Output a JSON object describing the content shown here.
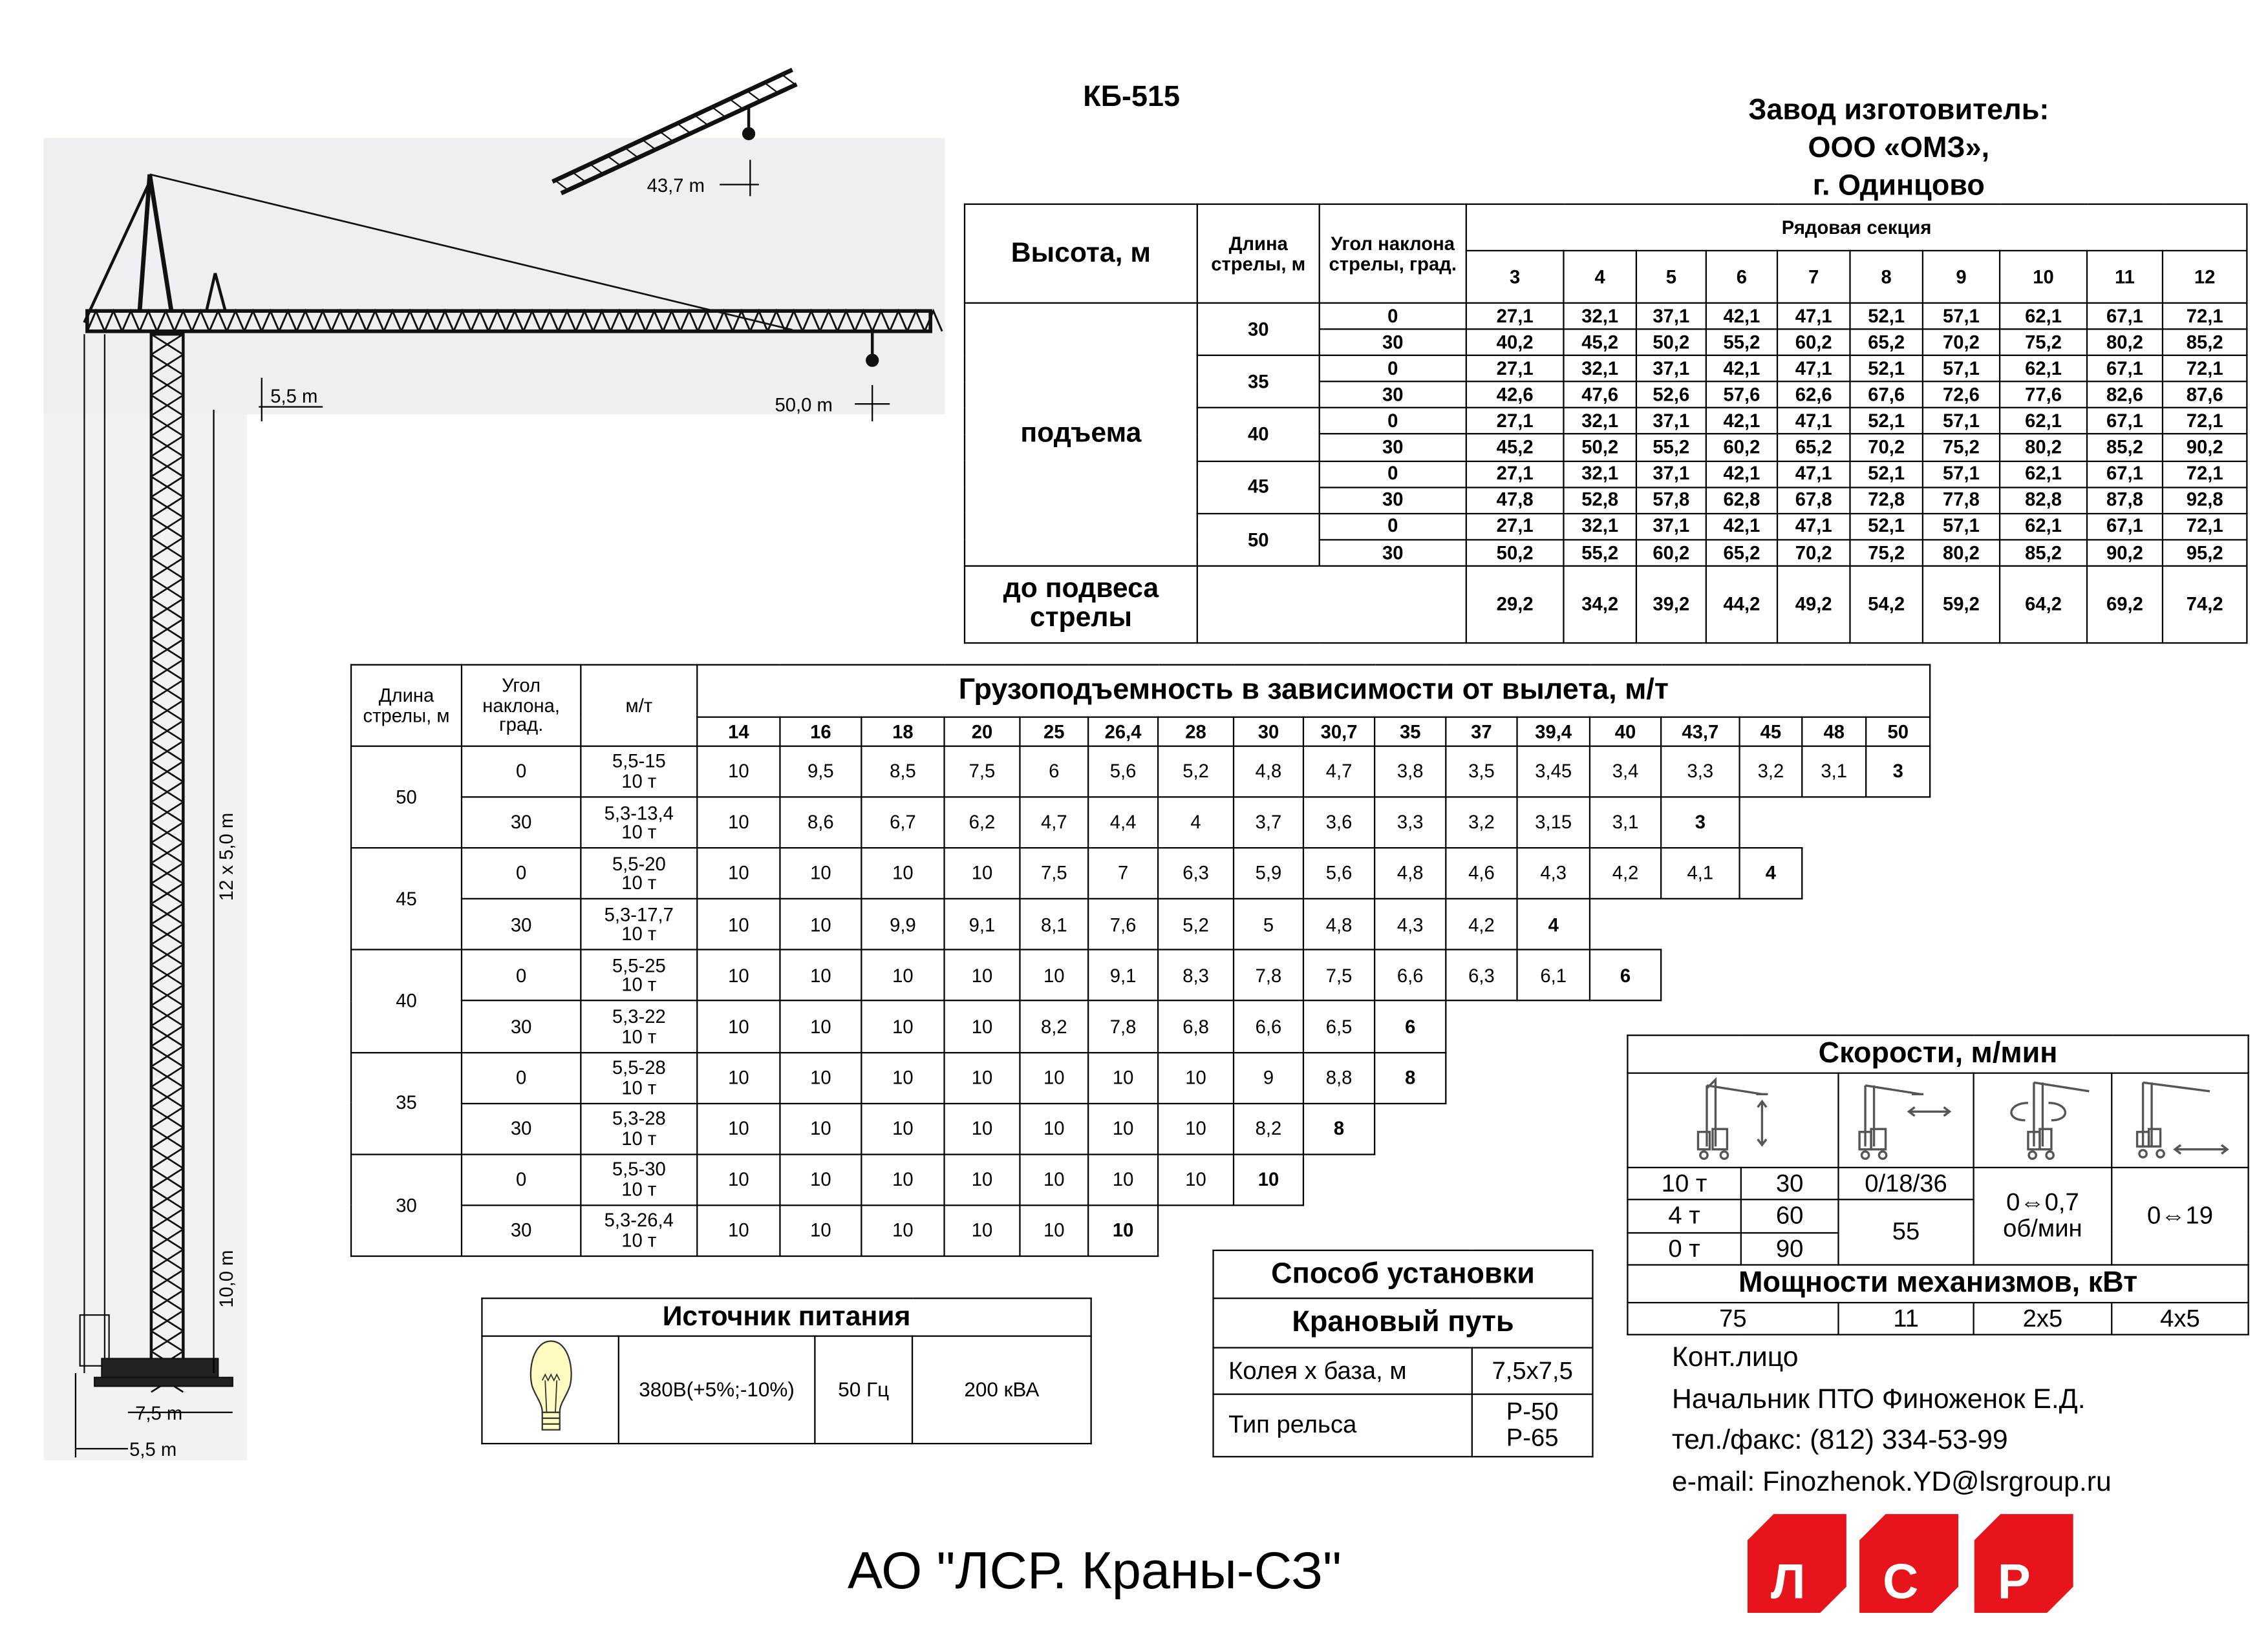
{
  "title": "КБ-515",
  "manufacturer": {
    "line1": "Завод изготовитель:",
    "line2": "ООО «ОМЗ»,",
    "line3": "г. Одинцово"
  },
  "drawing": {
    "labels": {
      "luffing_reach": "43,7 m",
      "jib_reach": "50,0 m",
      "jib_height": "5,5 m",
      "tower_sections": "12 x 5,0 m",
      "base_height": "10,0 m",
      "track_gauge": "7,5 m",
      "base_offset": "5,5 m"
    }
  },
  "height_table": {
    "height_label": "Высота, м",
    "boom_label": "Длина стрелы, м",
    "angle_label": "Угол наклона стрелы, град.",
    "section_label": "Рядовая секция",
    "sections": [
      "3",
      "4",
      "5",
      "6",
      "7",
      "8",
      "9",
      "10",
      "11",
      "12"
    ],
    "lift_label": "подъема",
    "groups": [
      {
        "boom": "30",
        "rows": [
          {
            "angle": "0",
            "values": [
              "27,1",
              "32,1",
              "37,1",
              "42,1",
              "47,1",
              "52,1",
              "57,1",
              "62,1",
              "67,1",
              "72,1"
            ]
          },
          {
            "angle": "30",
            "values": [
              "40,2",
              "45,2",
              "50,2",
              "55,2",
              "60,2",
              "65,2",
              "70,2",
              "75,2",
              "80,2",
              "85,2"
            ]
          }
        ]
      },
      {
        "boom": "35",
        "rows": [
          {
            "angle": "0",
            "values": [
              "27,1",
              "32,1",
              "37,1",
              "42,1",
              "47,1",
              "52,1",
              "57,1",
              "62,1",
              "67,1",
              "72,1"
            ]
          },
          {
            "angle": "30",
            "values": [
              "42,6",
              "47,6",
              "52,6",
              "57,6",
              "62,6",
              "67,6",
              "72,6",
              "77,6",
              "82,6",
              "87,6"
            ]
          }
        ]
      },
      {
        "boom": "40",
        "rows": [
          {
            "angle": "0",
            "values": [
              "27,1",
              "32,1",
              "37,1",
              "42,1",
              "47,1",
              "52,1",
              "57,1",
              "62,1",
              "67,1",
              "72,1"
            ]
          },
          {
            "angle": "30",
            "values": [
              "45,2",
              "50,2",
              "55,2",
              "60,2",
              "65,2",
              "70,2",
              "75,2",
              "80,2",
              "85,2",
              "90,2"
            ]
          }
        ]
      },
      {
        "boom": "45",
        "rows": [
          {
            "angle": "0",
            "values": [
              "27,1",
              "32,1",
              "37,1",
              "42,1",
              "47,1",
              "52,1",
              "57,1",
              "62,1",
              "67,1",
              "72,1"
            ]
          },
          {
            "angle": "30",
            "values": [
              "47,8",
              "52,8",
              "57,8",
              "62,8",
              "67,8",
              "72,8",
              "77,8",
              "82,8",
              "87,8",
              "92,8"
            ]
          }
        ]
      },
      {
        "boom": "50",
        "rows": [
          {
            "angle": "0",
            "values": [
              "27,1",
              "32,1",
              "37,1",
              "42,1",
              "47,1",
              "52,1",
              "57,1",
              "62,1",
              "67,1",
              "72,1"
            ]
          },
          {
            "angle": "30",
            "values": [
              "50,2",
              "55,2",
              "60,2",
              "65,2",
              "70,2",
              "75,2",
              "80,2",
              "85,2",
              "90,2",
              "95,2"
            ]
          }
        ]
      }
    ],
    "jib_hinge_label": "до подвеса стрелы",
    "jib_hinge_values": [
      "29,2",
      "34,2",
      "39,2",
      "44,2",
      "49,2",
      "54,2",
      "59,2",
      "64,2",
      "69,2",
      "74,2"
    ]
  },
  "capacity_table": {
    "title": "Грузоподъемность в зависимости от вылета, м/т",
    "boom_label": "Длина стрелы, м",
    "angle_label": "Угол наклона, град.",
    "mt_label": "м/т",
    "radii": [
      "14",
      "16",
      "18",
      "20",
      "25",
      "26,4",
      "28",
      "30",
      "30,7",
      "35",
      "37",
      "39,4",
      "40",
      "43,7",
      "45",
      "48",
      "50"
    ],
    "groups": [
      {
        "boom": "50",
        "rows": [
          {
            "angle": "0",
            "range": "5,5-15",
            "load": "10 т",
            "values": [
              "10",
              "9,5",
              "8,5",
              "7,5",
              "6",
              "5,6",
              "5,2",
              "4,8",
              "4,7",
              "3,8",
              "3,5",
              "3,45",
              "3,4",
              "3,3",
              "3,2",
              "3,1",
              "3"
            ]
          },
          {
            "angle": "30",
            "range": "5,3-13,4",
            "load": "10 т",
            "values": [
              "10",
              "8,6",
              "6,7",
              "6,2",
              "4,7",
              "4,4",
              "4",
              "3,7",
              "3,6",
              "3,3",
              "3,2",
              "3,15",
              "3,1",
              "3"
            ]
          }
        ]
      },
      {
        "boom": "45",
        "rows": [
          {
            "angle": "0",
            "range": "5,5-20",
            "load": "10 т",
            "values": [
              "10",
              "10",
              "10",
              "10",
              "7,5",
              "7",
              "6,3",
              "5,9",
              "5,6",
              "4,8",
              "4,6",
              "4,3",
              "4,2",
              "4,1",
              "4"
            ]
          },
          {
            "angle": "30",
            "range": "5,3-17,7",
            "load": "10 т",
            "values": [
              "10",
              "10",
              "9,9",
              "9,1",
              "8,1",
              "7,6",
              "5,2",
              "5",
              "4,8",
              "4,3",
              "4,2",
              "4"
            ]
          }
        ]
      },
      {
        "boom": "40",
        "rows": [
          {
            "angle": "0",
            "range": "5,5-25",
            "load": "10 т",
            "values": [
              "10",
              "10",
              "10",
              "10",
              "10",
              "9,1",
              "8,3",
              "7,8",
              "7,5",
              "6,6",
              "6,3",
              "6,1",
              "6"
            ]
          },
          {
            "angle": "30",
            "range": "5,3-22",
            "load": "10 т",
            "values": [
              "10",
              "10",
              "10",
              "10",
              "8,2",
              "7,8",
              "6,8",
              "6,6",
              "6,5",
              "6"
            ]
          }
        ]
      },
      {
        "boom": "35",
        "rows": [
          {
            "angle": "0",
            "range": "5,5-28",
            "load": "10 т",
            "values": [
              "10",
              "10",
              "10",
              "10",
              "10",
              "10",
              "10",
              "9",
              "8,8",
              "8"
            ]
          },
          {
            "angle": "30",
            "range": "5,3-28",
            "load": "10 т",
            "values": [
              "10",
              "10",
              "10",
              "10",
              "10",
              "10",
              "10",
              "8,2",
              "8"
            ]
          }
        ]
      },
      {
        "boom": "30",
        "rows": [
          {
            "angle": "0",
            "range": "5,5-30",
            "load": "10 т",
            "values": [
              "10",
              "10",
              "10",
              "10",
              "10",
              "10",
              "10",
              "10"
            ]
          },
          {
            "angle": "30",
            "range": "5,3-26,4",
            "load": "10 т",
            "values": [
              "10",
              "10",
              "10",
              "10",
              "10",
              "10"
            ]
          }
        ]
      }
    ]
  },
  "speeds": {
    "title": "Скорости, м/мин",
    "icons": [
      "crane-hoist-icon",
      "crane-trolley-icon",
      "crane-slewing-icon",
      "crane-travel-icon"
    ],
    "hoist": [
      {
        "load": "10 т",
        "speed": "30"
      },
      {
        "load": "4 т",
        "speed": "60"
      },
      {
        "load": "0 т",
        "speed": "90"
      }
    ],
    "trolley": {
      "upper": "0/18/36",
      "lower": "55"
    },
    "slewing": {
      "value": "0⇔0,7",
      "unit": "об/мин"
    },
    "travel": "0⇔19",
    "power_title": "Мощности механизмов, кВт",
    "power": [
      "75",
      "11",
      "2x5",
      "4x5"
    ]
  },
  "installation": {
    "title": "Способ установки",
    "subtitle": "Крановый путь",
    "gauge_label": "Колея х база, м",
    "gauge_value": "7,5х7,5",
    "rail_label": "Тип рельса",
    "rail_values": [
      "Р-50",
      "Р-65"
    ]
  },
  "power_source": {
    "title": "Источник питания",
    "icon": "light-bulb-icon",
    "voltage": "380В(+5%;-10%)",
    "frequency": "50 Гц",
    "capacity": "200 кВА"
  },
  "contact": {
    "label": "Конт.лицо",
    "person": "Начальник ПТО Финоженок Е.Д.",
    "phone": "тел./факс: (812) 334-53-99",
    "email": "e-mail: Finozhenok.YD@lsrgroup.ru"
  },
  "footer": {
    "company": "АО \"ЛСР. Краны-СЗ\""
  },
  "logo": {
    "letters": [
      "Л",
      "С",
      "Р"
    ],
    "color": "#e8141c"
  }
}
